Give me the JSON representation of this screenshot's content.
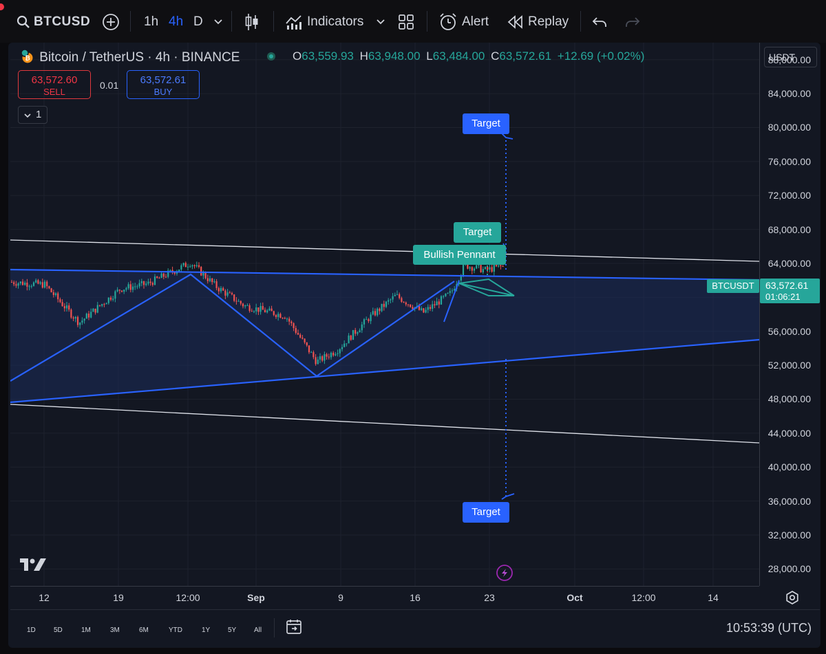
{
  "toolbar": {
    "symbol": "BTCUSD",
    "timeframes": [
      "1h",
      "4h",
      "D"
    ],
    "active_timeframe": "4h",
    "indicators_label": "Indicators",
    "alert_label": "Alert",
    "replay_label": "Replay"
  },
  "legend": {
    "title": "Bitcoin / TetherUS · 4h · BINANCE",
    "open_label": "O",
    "open": "63,559.93",
    "high_label": "H",
    "high": "63,948.00",
    "low_label": "L",
    "low": "63,484.00",
    "close_label": "C",
    "close": "63,572.61",
    "change": "+12.69 (+0.02%)",
    "sell_price": "63,572.60",
    "sell_label": "SELL",
    "spread": "0.01",
    "buy_price": "63,572.61",
    "buy_label": "BUY",
    "collapse_count": "1"
  },
  "currency": "USDT",
  "chart_data": {
    "type": "candlestick",
    "symbol": "BTCUSDT",
    "price_axis": [
      "88,000.00",
      "84,000.00",
      "80,000.00",
      "76,000.00",
      "72,000.00",
      "68,000.00",
      "64,000.00",
      "60,000.00",
      "56,000.00",
      "52,000.00",
      "48,000.00",
      "44,000.00",
      "40,000.00",
      "36,000.00",
      "32,000.00",
      "28,000.00"
    ],
    "time_axis": [
      "12",
      "19",
      "12:00",
      "Sep",
      "9",
      "16",
      "23",
      "Oct",
      "12:00",
      "14"
    ],
    "ylim": [
      26000,
      90000
    ],
    "last_price": "63,572.61",
    "countdown": "01:06:21",
    "symbol_tag": "BTCUSDT",
    "annotations": [
      "Target",
      "Target",
      "Bullish Pennant",
      "Target"
    ],
    "colors": {
      "up": "#26a69a",
      "down": "#ef5350",
      "lines": "#2962ff"
    }
  },
  "ranges": [
    "1D",
    "5D",
    "1M",
    "3M",
    "6M",
    "YTD",
    "1Y",
    "5Y",
    "All"
  ],
  "clock": "10:53:39 (UTC)"
}
